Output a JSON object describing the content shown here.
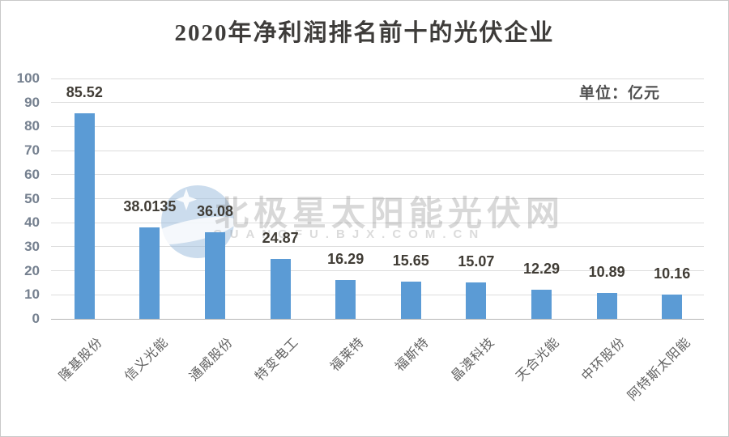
{
  "chart_data": {
    "type": "bar",
    "title": "2020年净利润排名前十的光伏企业",
    "unit_label": "单位：亿元",
    "categories": [
      "隆基股份",
      "信义光能",
      "通威股份",
      "特变电工",
      "福莱特",
      "福斯特",
      "晶澳科技",
      "天合光能",
      "中环股份",
      "阿特斯太阳能"
    ],
    "values": [
      85.52,
      38.0135,
      36.08,
      24.87,
      16.29,
      15.65,
      15.07,
      12.29,
      10.89,
      10.16
    ],
    "value_labels": [
      "85.52",
      "38.0135",
      "36.08",
      "24.87",
      "16.29",
      "15.65",
      "15.07",
      "12.29",
      "10.89",
      "10.16"
    ],
    "xlabel": "",
    "ylabel": "",
    "ylim": [
      0,
      100
    ],
    "yticks": [
      0,
      10,
      20,
      30,
      40,
      50,
      60,
      70,
      80,
      90,
      100
    ],
    "grid": true,
    "legend": "none",
    "bar_color": "#5B9BD5"
  },
  "watermark": {
    "text": "北极星太阳能光伏网",
    "subtext": "GUANGFU.BJX.COM.CN",
    "logo": "polar-star-logo"
  }
}
